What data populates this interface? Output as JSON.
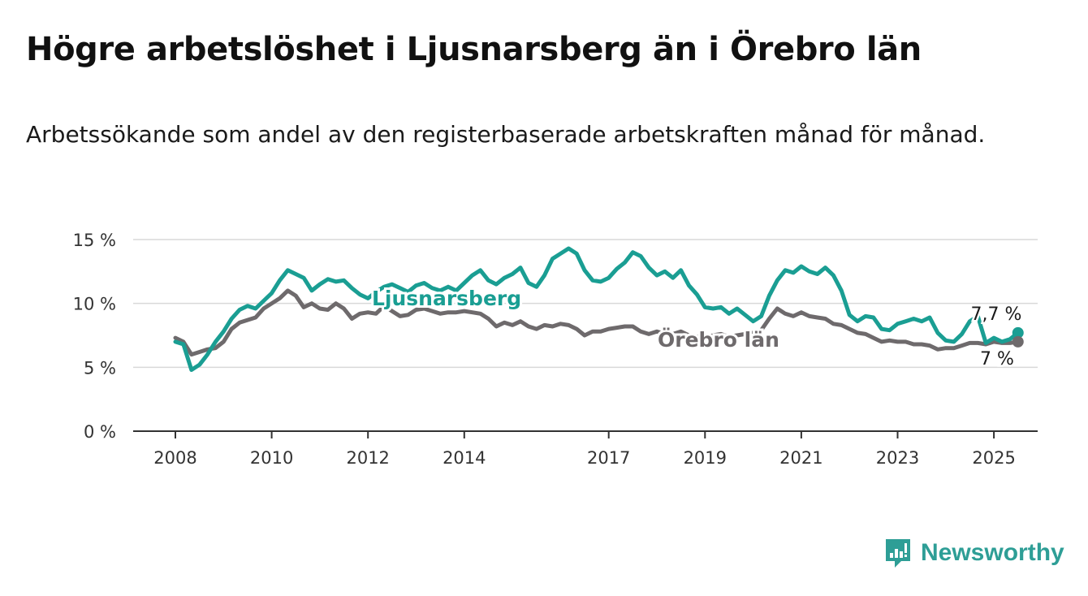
{
  "title": "Högre arbetslöshet i Ljusnarsberg än i Örebro län",
  "subtitle": "Arbetssökande som andel av den registerbaserade arbetskraften månad för månad.",
  "brand": {
    "name": "Newsworthy",
    "icon": "newsworthy-logo-icon",
    "color": "#2e9e96"
  },
  "chart_data": {
    "type": "line",
    "title": "Högre arbetslöshet i Ljusnarsberg än i Örebro län",
    "subtitle": "Arbetssökande som andel av den registerbaserade arbetskraften månad för månad.",
    "xlabel": "",
    "ylabel": "",
    "x_ticks": [
      "2008",
      "2010",
      "2012",
      "2014",
      "2017",
      "2019",
      "2021",
      "2023",
      "2025"
    ],
    "y_ticks": [
      "0 %",
      "5 %",
      "10 %",
      "15 %"
    ],
    "ylim": [
      0,
      15
    ],
    "grid": "horizontal",
    "legend": "inline labels",
    "series": [
      {
        "name": "Ljusnarsberg",
        "color": "#1a9e93",
        "end_label": "7,7 %",
        "points": [
          [
            "2008-01",
            7.0
          ],
          [
            "2008-03",
            6.8
          ],
          [
            "2008-05",
            4.8
          ],
          [
            "2008-07",
            5.2
          ],
          [
            "2008-09",
            6.0
          ],
          [
            "2008-11",
            7.0
          ],
          [
            "2009-01",
            7.8
          ],
          [
            "2009-03",
            8.8
          ],
          [
            "2009-05",
            9.5
          ],
          [
            "2009-07",
            9.8
          ],
          [
            "2009-09",
            9.6
          ],
          [
            "2009-11",
            10.2
          ],
          [
            "2010-01",
            10.8
          ],
          [
            "2010-03",
            11.8
          ],
          [
            "2010-05",
            12.6
          ],
          [
            "2010-07",
            12.3
          ],
          [
            "2010-09",
            12.0
          ],
          [
            "2010-11",
            11.0
          ],
          [
            "2011-01",
            11.5
          ],
          [
            "2011-03",
            11.9
          ],
          [
            "2011-05",
            11.7
          ],
          [
            "2011-07",
            11.8
          ],
          [
            "2011-09",
            11.2
          ],
          [
            "2011-11",
            10.7
          ],
          [
            "2012-01",
            10.4
          ],
          [
            "2012-03",
            10.9
          ],
          [
            "2012-05",
            11.3
          ],
          [
            "2012-07",
            11.5
          ],
          [
            "2012-09",
            11.2
          ],
          [
            "2012-11",
            10.9
          ],
          [
            "2013-01",
            11.4
          ],
          [
            "2013-03",
            11.6
          ],
          [
            "2013-05",
            11.2
          ],
          [
            "2013-07",
            11.0
          ],
          [
            "2013-09",
            11.3
          ],
          [
            "2013-11",
            11.0
          ],
          [
            "2014-01",
            11.6
          ],
          [
            "2014-03",
            12.2
          ],
          [
            "2014-05",
            12.6
          ],
          [
            "2014-07",
            11.8
          ],
          [
            "2014-09",
            11.5
          ],
          [
            "2014-11",
            12.0
          ],
          [
            "2015-01",
            12.3
          ],
          [
            "2015-03",
            12.8
          ],
          [
            "2015-05",
            11.6
          ],
          [
            "2015-07",
            11.3
          ],
          [
            "2015-09",
            12.2
          ],
          [
            "2015-11",
            13.5
          ],
          [
            "2016-01",
            13.9
          ],
          [
            "2016-03",
            14.3
          ],
          [
            "2016-05",
            13.9
          ],
          [
            "2016-07",
            12.6
          ],
          [
            "2016-09",
            11.8
          ],
          [
            "2016-11",
            11.7
          ],
          [
            "2017-01",
            12.0
          ],
          [
            "2017-03",
            12.7
          ],
          [
            "2017-05",
            13.2
          ],
          [
            "2017-07",
            14.0
          ],
          [
            "2017-09",
            13.7
          ],
          [
            "2017-11",
            12.8
          ],
          [
            "2018-01",
            12.2
          ],
          [
            "2018-03",
            12.5
          ],
          [
            "2018-05",
            12.0
          ],
          [
            "2018-07",
            12.6
          ],
          [
            "2018-09",
            11.4
          ],
          [
            "2018-11",
            10.7
          ],
          [
            "2019-01",
            9.7
          ],
          [
            "2019-03",
            9.6
          ],
          [
            "2019-05",
            9.7
          ],
          [
            "2019-07",
            9.2
          ],
          [
            "2019-09",
            9.6
          ],
          [
            "2019-11",
            9.1
          ],
          [
            "2020-01",
            8.6
          ],
          [
            "2020-03",
            9.0
          ],
          [
            "2020-05",
            10.6
          ],
          [
            "2020-07",
            11.8
          ],
          [
            "2020-09",
            12.6
          ],
          [
            "2020-11",
            12.4
          ],
          [
            "2021-01",
            12.9
          ],
          [
            "2021-03",
            12.5
          ],
          [
            "2021-05",
            12.3
          ],
          [
            "2021-07",
            12.8
          ],
          [
            "2021-09",
            12.2
          ],
          [
            "2021-11",
            11.0
          ],
          [
            "2022-01",
            9.1
          ],
          [
            "2022-03",
            8.6
          ],
          [
            "2022-05",
            9.0
          ],
          [
            "2022-07",
            8.9
          ],
          [
            "2022-09",
            8.0
          ],
          [
            "2022-11",
            7.9
          ],
          [
            "2023-01",
            8.4
          ],
          [
            "2023-03",
            8.6
          ],
          [
            "2023-05",
            8.8
          ],
          [
            "2023-07",
            8.6
          ],
          [
            "2023-09",
            8.9
          ],
          [
            "2023-11",
            7.7
          ],
          [
            "2024-01",
            7.1
          ],
          [
            "2024-03",
            7.0
          ],
          [
            "2024-05",
            7.6
          ],
          [
            "2024-07",
            8.6
          ],
          [
            "2024-09",
            9.0
          ],
          [
            "2024-11",
            6.9
          ],
          [
            "2025-01",
            7.3
          ],
          [
            "2025-03",
            7.0
          ],
          [
            "2025-05",
            7.2
          ],
          [
            "2025-07",
            7.7
          ]
        ]
      },
      {
        "name": "Örebro län",
        "color": "#6e6a6c",
        "end_label": "7 %",
        "points": [
          [
            "2008-01",
            7.3
          ],
          [
            "2008-03",
            7.0
          ],
          [
            "2008-05",
            6.0
          ],
          [
            "2008-07",
            6.2
          ],
          [
            "2008-09",
            6.4
          ],
          [
            "2008-11",
            6.5
          ],
          [
            "2009-01",
            7.0
          ],
          [
            "2009-03",
            8.0
          ],
          [
            "2009-05",
            8.5
          ],
          [
            "2009-07",
            8.7
          ],
          [
            "2009-09",
            8.9
          ],
          [
            "2009-11",
            9.6
          ],
          [
            "2010-01",
            10.0
          ],
          [
            "2010-03",
            10.4
          ],
          [
            "2010-05",
            11.0
          ],
          [
            "2010-07",
            10.6
          ],
          [
            "2010-09",
            9.7
          ],
          [
            "2010-11",
            10.0
          ],
          [
            "2011-01",
            9.6
          ],
          [
            "2011-03",
            9.5
          ],
          [
            "2011-05",
            10.0
          ],
          [
            "2011-07",
            9.6
          ],
          [
            "2011-09",
            8.8
          ],
          [
            "2011-11",
            9.2
          ],
          [
            "2012-01",
            9.3
          ],
          [
            "2012-03",
            9.2
          ],
          [
            "2012-05",
            9.8
          ],
          [
            "2012-07",
            9.4
          ],
          [
            "2012-09",
            9.0
          ],
          [
            "2012-11",
            9.1
          ],
          [
            "2013-01",
            9.5
          ],
          [
            "2013-03",
            9.6
          ],
          [
            "2013-05",
            9.4
          ],
          [
            "2013-07",
            9.2
          ],
          [
            "2013-09",
            9.3
          ],
          [
            "2013-11",
            9.3
          ],
          [
            "2014-01",
            9.4
          ],
          [
            "2014-03",
            9.3
          ],
          [
            "2014-05",
            9.2
          ],
          [
            "2014-07",
            8.8
          ],
          [
            "2014-09",
            8.2
          ],
          [
            "2014-11",
            8.5
          ],
          [
            "2015-01",
            8.3
          ],
          [
            "2015-03",
            8.6
          ],
          [
            "2015-05",
            8.2
          ],
          [
            "2015-07",
            8.0
          ],
          [
            "2015-09",
            8.3
          ],
          [
            "2015-11",
            8.2
          ],
          [
            "2016-01",
            8.4
          ],
          [
            "2016-03",
            8.3
          ],
          [
            "2016-05",
            8.0
          ],
          [
            "2016-07",
            7.5
          ],
          [
            "2016-09",
            7.8
          ],
          [
            "2016-11",
            7.8
          ],
          [
            "2017-01",
            8.0
          ],
          [
            "2017-03",
            8.1
          ],
          [
            "2017-05",
            8.2
          ],
          [
            "2017-07",
            8.2
          ],
          [
            "2017-09",
            7.8
          ],
          [
            "2017-11",
            7.6
          ],
          [
            "2018-01",
            7.8
          ],
          [
            "2018-03",
            7.6
          ],
          [
            "2018-05",
            7.6
          ],
          [
            "2018-07",
            7.8
          ],
          [
            "2018-09",
            7.5
          ],
          [
            "2018-11",
            7.4
          ],
          [
            "2019-01",
            7.3
          ],
          [
            "2019-03",
            7.5
          ],
          [
            "2019-05",
            7.6
          ],
          [
            "2019-07",
            7.4
          ],
          [
            "2019-09",
            7.5
          ],
          [
            "2019-11",
            7.6
          ],
          [
            "2020-01",
            7.7
          ],
          [
            "2020-03",
            7.9
          ],
          [
            "2020-05",
            8.8
          ],
          [
            "2020-07",
            9.6
          ],
          [
            "2020-09",
            9.2
          ],
          [
            "2020-11",
            9.0
          ],
          [
            "2021-01",
            9.3
          ],
          [
            "2021-03",
            9.0
          ],
          [
            "2021-05",
            8.9
          ],
          [
            "2021-07",
            8.8
          ],
          [
            "2021-09",
            8.4
          ],
          [
            "2021-11",
            8.3
          ],
          [
            "2022-01",
            8.0
          ],
          [
            "2022-03",
            7.7
          ],
          [
            "2022-05",
            7.6
          ],
          [
            "2022-07",
            7.3
          ],
          [
            "2022-09",
            7.0
          ],
          [
            "2022-11",
            7.1
          ],
          [
            "2023-01",
            7.0
          ],
          [
            "2023-03",
            7.0
          ],
          [
            "2023-05",
            6.8
          ],
          [
            "2023-07",
            6.8
          ],
          [
            "2023-09",
            6.7
          ],
          [
            "2023-11",
            6.4
          ],
          [
            "2024-01",
            6.5
          ],
          [
            "2024-03",
            6.5
          ],
          [
            "2024-05",
            6.7
          ],
          [
            "2024-07",
            6.9
          ],
          [
            "2024-09",
            6.9
          ],
          [
            "2024-11",
            6.8
          ],
          [
            "2025-01",
            7.0
          ],
          [
            "2025-03",
            6.9
          ],
          [
            "2025-05",
            6.9
          ],
          [
            "2025-07",
            7.0
          ]
        ]
      }
    ]
  }
}
